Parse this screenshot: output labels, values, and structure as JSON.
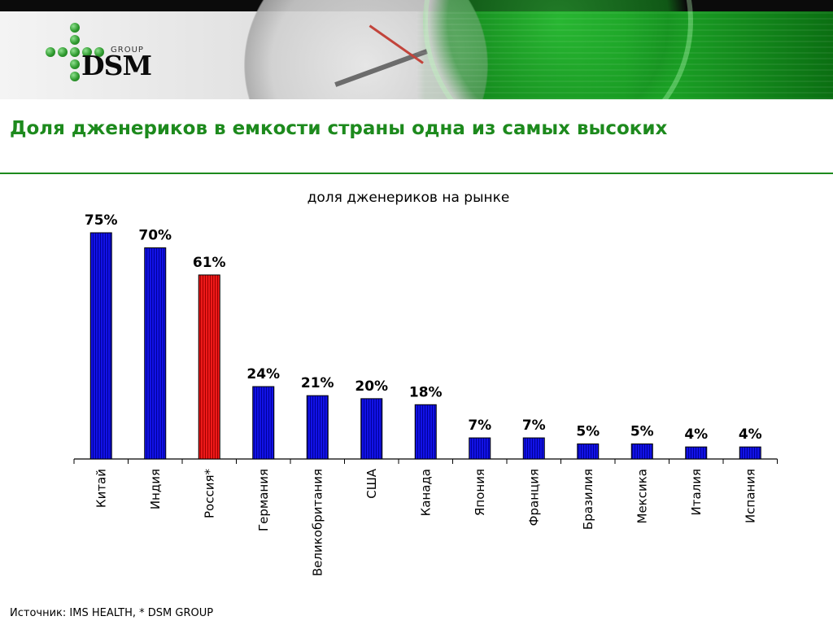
{
  "header": {
    "logo_text": "DSM",
    "logo_subtext": "GROUP"
  },
  "slide": {
    "title": "Доля дженериков в емкости страны одна из самых высоких",
    "source": "Источник: IMS HEALTH, * DSM GROUP"
  },
  "colors": {
    "title_green": "#1d8a1d",
    "bar_default": "#1010d8",
    "bar_highlight": "#e01010"
  },
  "chart_data": {
    "type": "bar",
    "title": "доля дженериков на рынке",
    "unit": "%",
    "ylim": [
      0,
      75
    ],
    "grid": false,
    "categories": [
      "Китай",
      "Индия",
      "Россия*",
      "Германия",
      "Великобритания",
      "США",
      "Канада",
      "Япония",
      "Франция",
      "Бразилия",
      "Мексика",
      "Италия",
      "Испания"
    ],
    "values": [
      75,
      70,
      61,
      24,
      21,
      20,
      18,
      7,
      7,
      5,
      5,
      4,
      4
    ],
    "value_labels": [
      "75%",
      "70%",
      "61%",
      "24%",
      "21%",
      "20%",
      "18%",
      "7%",
      "7%",
      "5%",
      "5%",
      "4%",
      "4%"
    ],
    "highlight_category": "Россия*"
  }
}
